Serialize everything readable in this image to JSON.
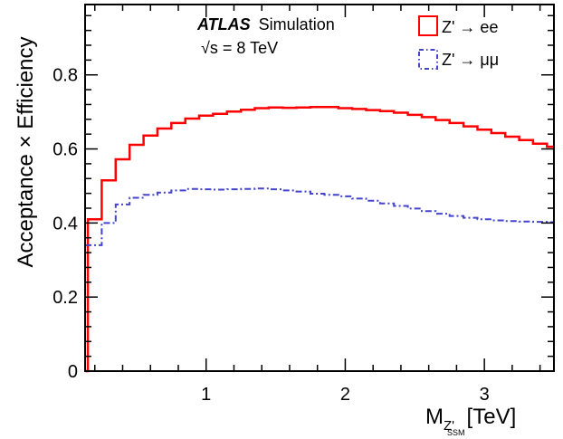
{
  "chart_data": {
    "type": "line",
    "step": true,
    "annotation": {
      "experiment": "ATLAS",
      "label": "Simulation",
      "energy": "√s = 8 TeV"
    },
    "xlabel": {
      "main": "M",
      "sub": "Z'",
      "subsub": "SSM",
      "unit": "[TeV]"
    },
    "ylabel": "Acceptance × Efficiency",
    "xlim": [
      0.13,
      3.5
    ],
    "ylim": [
      0,
      0.99
    ],
    "xticks": [
      1,
      2,
      3
    ],
    "xtick_labels": [
      "1",
      "2",
      "3"
    ],
    "yticks": [
      0,
      0.2,
      0.4,
      0.6,
      0.8
    ],
    "ytick_labels": [
      "0",
      "0.2",
      "0.4",
      "0.6",
      "0.8"
    ],
    "legend_position": "top-right",
    "grid": false,
    "series": [
      {
        "name": "Z' → ee",
        "color": "#ff0000",
        "style": "solid",
        "x": [
          0.13,
          0.15,
          0.25,
          0.35,
          0.45,
          0.55,
          0.65,
          0.75,
          0.85,
          0.95,
          1.05,
          1.15,
          1.25,
          1.35,
          1.45,
          1.55,
          1.65,
          1.75,
          1.85,
          1.95,
          2.05,
          2.15,
          2.25,
          2.35,
          2.45,
          2.55,
          2.65,
          2.75,
          2.85,
          2.95,
          3.05,
          3.15,
          3.25,
          3.35,
          3.45,
          3.5
        ],
        "y": [
          0.0,
          0.41,
          0.515,
          0.572,
          0.611,
          0.636,
          0.655,
          0.67,
          0.682,
          0.69,
          0.695,
          0.701,
          0.706,
          0.71,
          0.712,
          0.711,
          0.712,
          0.713,
          0.713,
          0.71,
          0.708,
          0.705,
          0.702,
          0.698,
          0.692,
          0.686,
          0.678,
          0.67,
          0.661,
          0.652,
          0.643,
          0.633,
          0.624,
          0.614,
          0.606,
          0.606
        ]
      },
      {
        "name": "Z' → μμ",
        "color": "#4444cc",
        "style": "dashdot",
        "x": [
          0.13,
          0.15,
          0.25,
          0.35,
          0.45,
          0.55,
          0.65,
          0.75,
          0.85,
          0.95,
          1.05,
          1.15,
          1.25,
          1.35,
          1.45,
          1.55,
          1.65,
          1.75,
          1.85,
          1.95,
          2.05,
          2.15,
          2.25,
          2.35,
          2.45,
          2.55,
          2.65,
          2.75,
          2.85,
          2.95,
          3.05,
          3.15,
          3.25,
          3.35,
          3.45,
          3.5
        ],
        "y": [
          0.34,
          0.34,
          0.4,
          0.45,
          0.468,
          0.476,
          0.482,
          0.488,
          0.492,
          0.491,
          0.49,
          0.491,
          0.492,
          0.493,
          0.491,
          0.488,
          0.485,
          0.479,
          0.476,
          0.472,
          0.466,
          0.46,
          0.453,
          0.446,
          0.439,
          0.432,
          0.425,
          0.419,
          0.414,
          0.41,
          0.407,
          0.405,
          0.404,
          0.403,
          0.402,
          0.402
        ]
      }
    ]
  }
}
